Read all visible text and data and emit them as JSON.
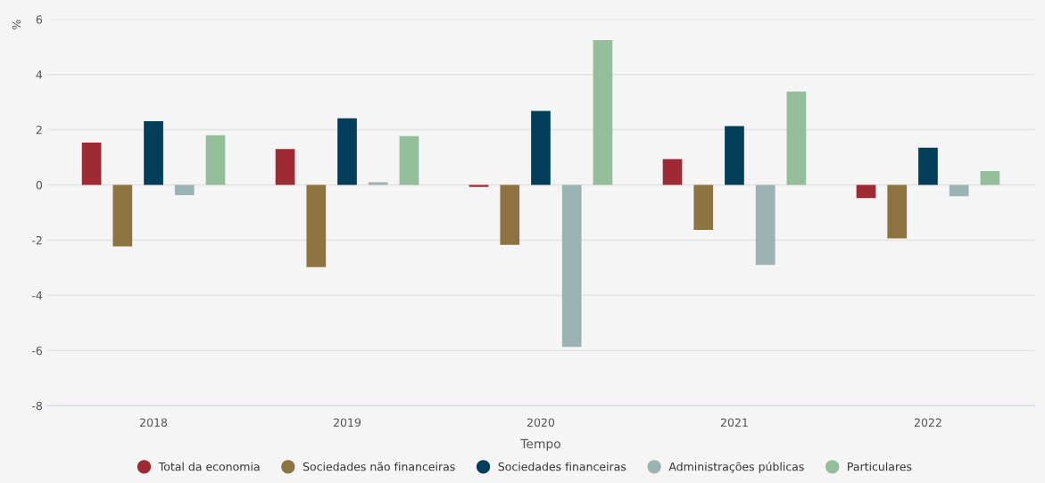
{
  "chart_data": {
    "type": "bar",
    "xlabel": "Tempo",
    "ylabel": "%",
    "categories": [
      "2018",
      "2019",
      "2020",
      "2021",
      "2022"
    ],
    "series": [
      {
        "name": "Total da economia",
        "color": "#9e2a33",
        "values": [
          1.53,
          1.3,
          -0.07,
          0.94,
          -0.48
        ]
      },
      {
        "name": "Sociedades não financeiras",
        "color": "#8c733f",
        "values": [
          -2.23,
          -2.98,
          -2.17,
          -1.63,
          -1.94
        ]
      },
      {
        "name": "Sociedades financeiras",
        "color": "#023d5a",
        "values": [
          2.31,
          2.41,
          2.68,
          2.13,
          1.35
        ]
      },
      {
        "name": "Administrações públicas",
        "color": "#9cb3b3",
        "values": [
          -0.37,
          0.1,
          -5.87,
          -2.9,
          -0.41
        ]
      },
      {
        "name": "Particulares",
        "color": "#94bd99",
        "values": [
          1.8,
          1.77,
          5.25,
          3.38,
          0.5
        ]
      }
    ],
    "ylim": [
      -8,
      6
    ],
    "yticks": [
      -8,
      -6,
      -4,
      -2,
      0,
      2,
      4,
      6
    ],
    "grid": "y",
    "legend": "bottom"
  }
}
